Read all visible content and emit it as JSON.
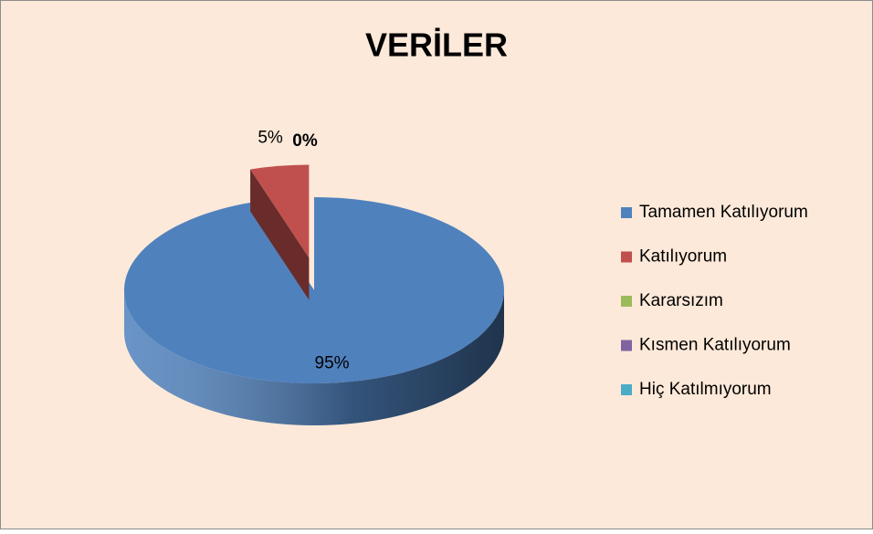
{
  "chart_data": {
    "type": "pie",
    "title": "VERİLER",
    "categories": [
      "Tamamen Katılıyorum",
      "Katılıyorum",
      "Kararsızım",
      "Kısmen Katılıyorum",
      "Hiç Katılmıyorum"
    ],
    "values": [
      95,
      5,
      0,
      0,
      0
    ],
    "value_labels": [
      "95%",
      "5%",
      "0%",
      null,
      null
    ],
    "colors": [
      "#4f81bd",
      "#c0504d",
      "#9bbb59",
      "#8064a2",
      "#4bacc6"
    ],
    "legend": "right"
  }
}
